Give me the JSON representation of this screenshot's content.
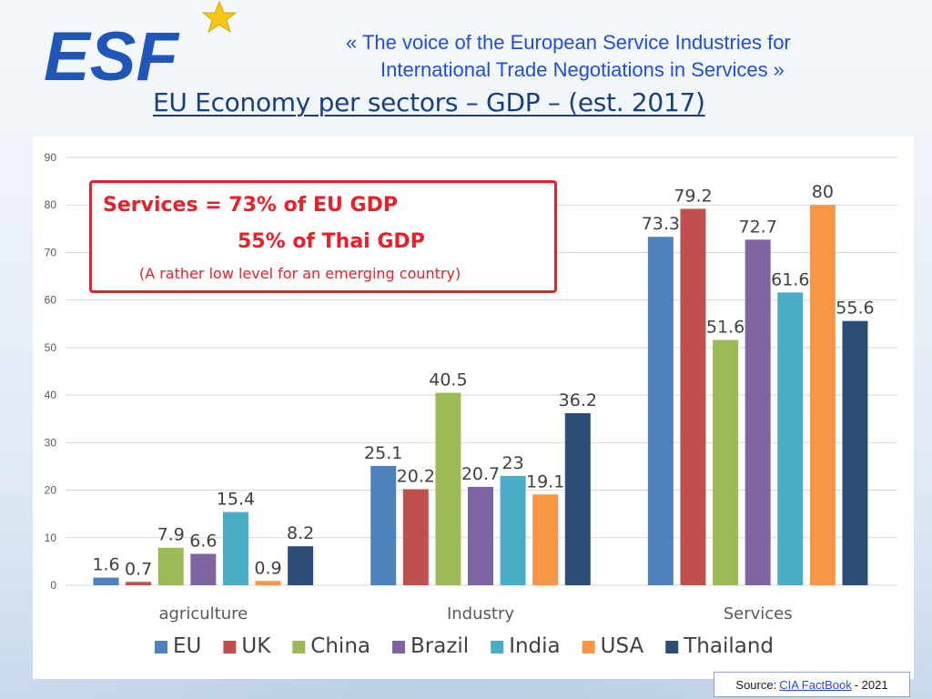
{
  "header": {
    "logo_text": "ESF",
    "tagline_line1": "«  The voice of the European Service Industries for",
    "tagline_line2": "International Trade Negotiations in Services  »",
    "title": "EU Economy per sectors – GDP – (est. 2017)"
  },
  "callout": {
    "line1": "Services = 73% of EU GDP",
    "line2": "55% of Thai GDP",
    "line3": "(A rather low level for an emerging country)"
  },
  "source": {
    "prefix": "Source:",
    "link_text": "CIA FactBook",
    "suffix": "- 2021"
  },
  "colors": {
    "logo_blue": "#1f56b8",
    "star_yellow": "#f5c518",
    "callout_red": "#e8202a"
  },
  "chart_data": {
    "type": "bar",
    "categories": [
      "agriculture",
      "Industry",
      "Services"
    ],
    "ylim": [
      0,
      90
    ],
    "yticks": [
      0,
      10,
      20,
      30,
      40,
      50,
      60,
      70,
      80,
      90
    ],
    "grid": true,
    "legend_position": "bottom",
    "series": [
      {
        "name": "EU",
        "color": "#4f81bd",
        "values": [
          1.6,
          25.1,
          73.3
        ],
        "labels": [
          "1.6",
          "25.1",
          "73.3"
        ]
      },
      {
        "name": "UK",
        "color": "#c0504d",
        "values": [
          0.7,
          20.2,
          79.2
        ],
        "labels": [
          "0.7",
          "20.2",
          "79.2"
        ]
      },
      {
        "name": "China",
        "color": "#9bbb59",
        "values": [
          7.9,
          40.5,
          51.6
        ],
        "labels": [
          "7.9",
          "40.5",
          "51.6"
        ]
      },
      {
        "name": "Brazil",
        "color": "#8064a2",
        "values": [
          6.6,
          20.7,
          72.7
        ],
        "labels": [
          "6.6",
          "20.7",
          "72.7"
        ]
      },
      {
        "name": "India",
        "color": "#4bacc6",
        "values": [
          15.4,
          23,
          61.6
        ],
        "labels": [
          "15.4",
          "23",
          "61.6"
        ]
      },
      {
        "name": "USA",
        "color": "#f79646",
        "values": [
          0.9,
          19.1,
          80
        ],
        "labels": [
          "0.9",
          "19.1",
          "80"
        ]
      },
      {
        "name": "Thailand",
        "color": "#2c4d75",
        "values": [
          8.2,
          36.2,
          55.6
        ],
        "labels": [
          "8.2",
          "36.2",
          "55.6"
        ]
      }
    ]
  }
}
